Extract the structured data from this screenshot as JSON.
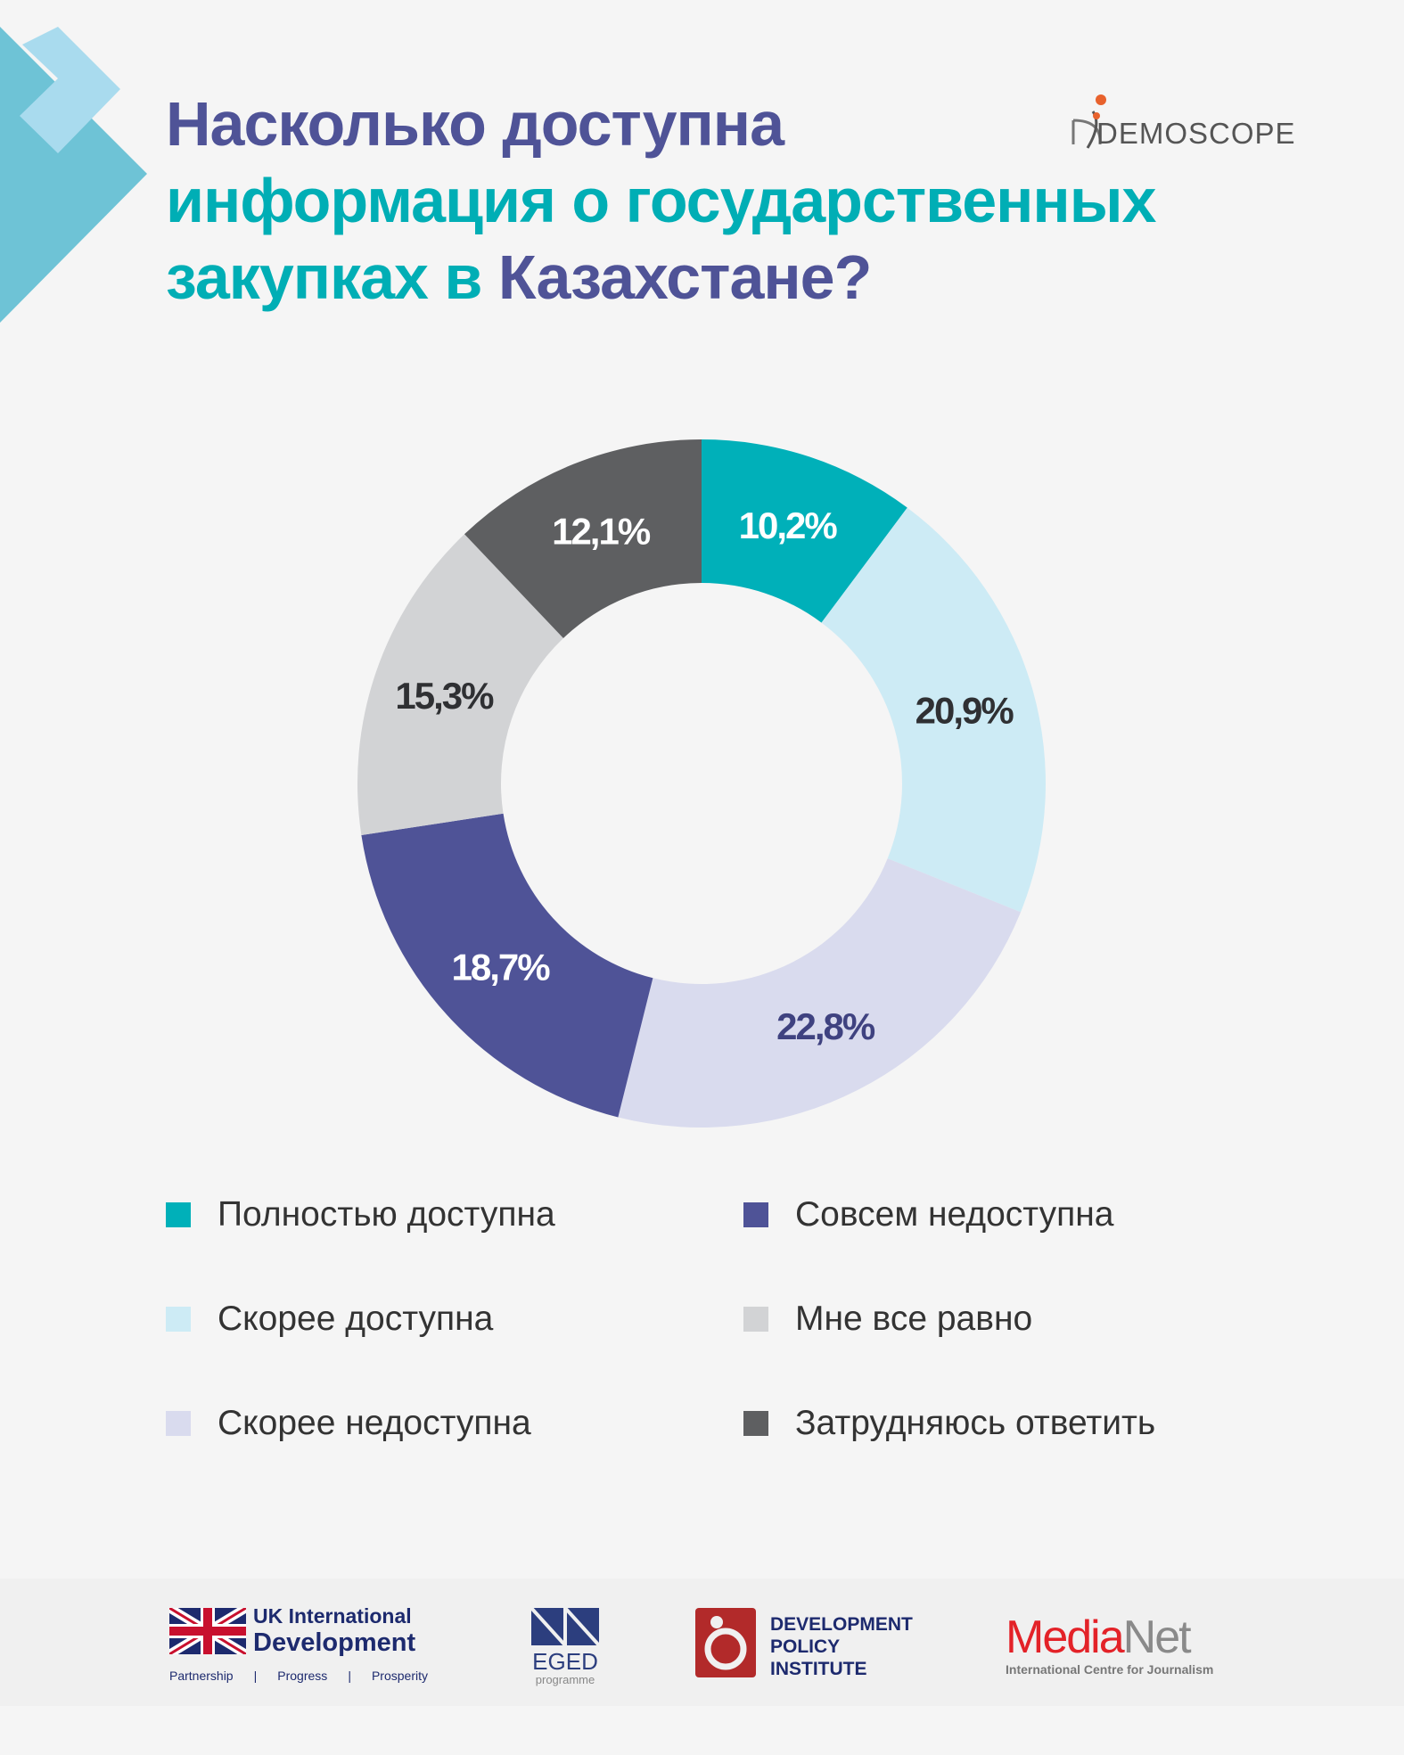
{
  "title": {
    "line1": "Насколько доступна",
    "line2": "информация о государственных",
    "line3_a": "закупках в ",
    "line3_b": "Казахстане?"
  },
  "brand": {
    "name": "DEMOSCOPE"
  },
  "chart_data": {
    "type": "pie",
    "subtype": "donut",
    "title": "Насколько доступна информация о государственных закупках в Казахстане?",
    "categories": [
      "Полностью доступна",
      "Скорее доступна",
      "Скорее недоступна",
      "Совсем недоступна",
      "Мне все равно",
      "Затрудняюсь ответить"
    ],
    "values": [
      10.2,
      20.9,
      22.8,
      18.7,
      15.3,
      12.1
    ],
    "labels": [
      "10,2%",
      "20,9%",
      "22,8%",
      "18,7%",
      "15,3%",
      "12,1%"
    ],
    "colors": [
      "#00b0b9",
      "#cdebf5",
      "#d9dbee",
      "#4f5397",
      "#d2d3d5",
      "#5e5f61"
    ],
    "label_colors": [
      "#ffffff",
      "#2f3033",
      "#3f4280",
      "#ffffff",
      "#2f3033",
      "#ffffff"
    ],
    "legend_position": "bottom"
  },
  "footer": {
    "uk": {
      "line1": "UK International",
      "line2": "Development",
      "tagline": [
        "Partnership",
        "|",
        "Progress",
        "|",
        "Prosperity"
      ]
    },
    "eged": {
      "name": "EGED",
      "sub": "programme"
    },
    "dpi": {
      "line1": "DEVELOPMENT",
      "line2": "POLICY",
      "line3": "INSTITUTE"
    },
    "medianet": {
      "a": "Media",
      "b": "Net",
      "sub": "International Centre for Journalism"
    }
  }
}
